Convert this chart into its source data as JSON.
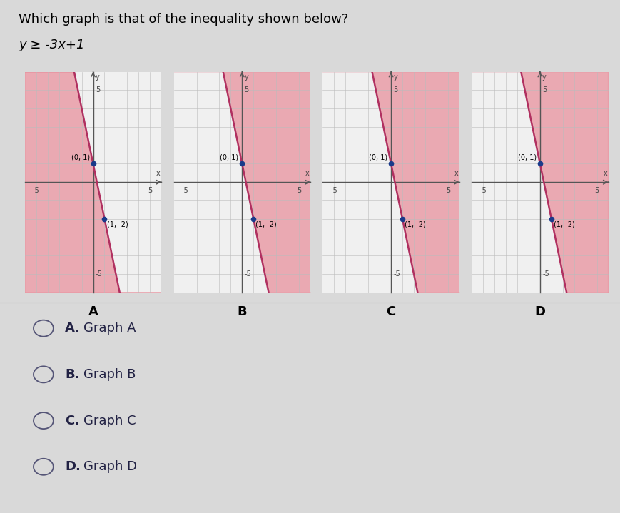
{
  "title": "Which graph is that of the inequality shown below?",
  "inequality": "y ≥ -3x+1",
  "bg_color": "#d9d9d9",
  "graph_bg": "#f0f0f0",
  "shade_color": "#e8919e",
  "shade_alpha": 0.75,
  "line_color": "#b03060",
  "point_color": "#1a3a8a",
  "axis_color": "#555555",
  "xlim": [
    -6,
    6
  ],
  "ylim": [
    -6,
    6
  ],
  "points": [
    [
      0,
      1
    ],
    [
      1,
      -2
    ]
  ],
  "graph_labels": [
    "A",
    "B",
    "C",
    "D"
  ],
  "shade_sides": [
    "left",
    "right",
    "left_upper",
    "right"
  ],
  "answer_options": [
    {
      "letter": "A.",
      "text": "Graph A"
    },
    {
      "letter": "B.",
      "text": "Graph B"
    },
    {
      "letter": "C.",
      "text": "Graph C"
    },
    {
      "letter": "D.",
      "text": "Graph D"
    }
  ],
  "title_fontsize": 13,
  "ineq_fontsize": 13,
  "tick_label_fontsize": 7,
  "point_label_fontsize": 7,
  "graph_letter_fontsize": 13,
  "option_fontsize": 13
}
